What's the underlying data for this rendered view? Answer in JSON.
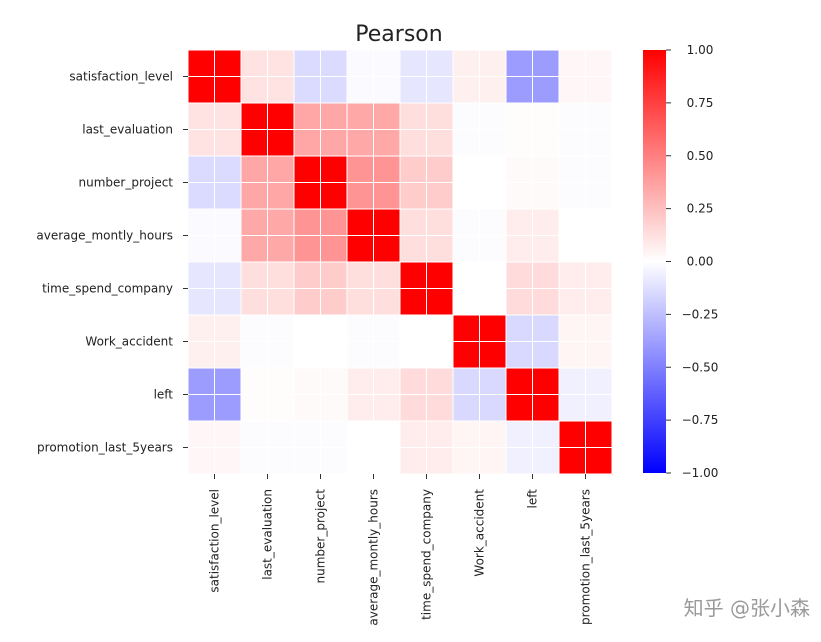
{
  "chart_data": {
    "type": "heatmap",
    "title": "Pearson",
    "rows": [
      "satisfaction_level",
      "last_evaluation",
      "number_project",
      "average_montly_hours",
      "time_spend_company",
      "Work_accident",
      "left",
      "promotion_last_5years"
    ],
    "columns": [
      "satisfaction_level",
      "last_evaluation",
      "number_project",
      "average_montly_hours",
      "time_spend_company",
      "Work_accident",
      "left",
      "promotion_last_5years"
    ],
    "values": [
      [
        1.0,
        0.11,
        -0.14,
        -0.02,
        -0.1,
        0.06,
        -0.39,
        0.03
      ],
      [
        0.11,
        1.0,
        0.35,
        0.34,
        0.13,
        -0.01,
        0.01,
        -0.01
      ],
      [
        -0.14,
        0.35,
        1.0,
        0.42,
        0.2,
        -0.0,
        0.02,
        -0.01
      ],
      [
        -0.02,
        0.34,
        0.42,
        1.0,
        0.13,
        -0.01,
        0.07,
        -0.0
      ],
      [
        -0.1,
        0.13,
        0.2,
        0.13,
        1.0,
        0.0,
        0.14,
        0.07
      ],
      [
        0.06,
        -0.01,
        -0.0,
        -0.01,
        0.0,
        1.0,
        -0.15,
        0.04
      ],
      [
        -0.39,
        0.01,
        0.02,
        0.07,
        0.14,
        -0.15,
        1.0,
        -0.06
      ],
      [
        0.03,
        -0.01,
        -0.01,
        -0.0,
        0.07,
        0.04,
        -0.06,
        1.0
      ]
    ],
    "vmin": -1.0,
    "vmax": 1.0,
    "colormap": "bwr",
    "colormap_colors": {
      "low": "#0000ff",
      "mid": "#ffffff",
      "high": "#ff0000"
    },
    "colorbar_ticks": [
      "1.00",
      "0.75",
      "0.50",
      "0.25",
      "0.00",
      "−0.25",
      "−0.50",
      "−0.75",
      "−1.00"
    ],
    "colorbar_tick_values": [
      1.0,
      0.75,
      0.5,
      0.25,
      0.0,
      -0.25,
      -0.5,
      -0.75,
      -1.0
    ],
    "grid_color": "#ffffff"
  },
  "watermark": "知乎 @张小森"
}
